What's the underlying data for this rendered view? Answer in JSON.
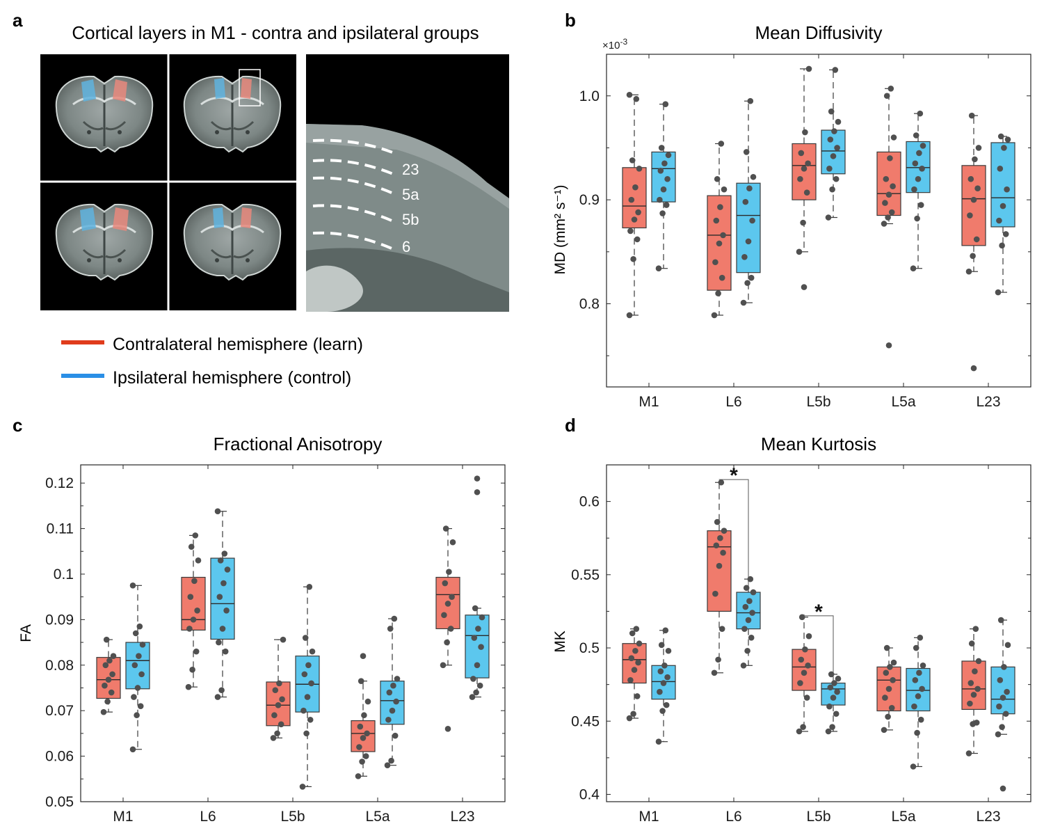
{
  "panel_a": {
    "letter": "a",
    "title": "Cortical layers in M1 - contra and ipsilateral groups",
    "layer_labels": [
      "23",
      "5a",
      "5b",
      "6"
    ],
    "legend": [
      {
        "label": "Contralateral hemisphere (learn)",
        "color": "#e03c1c"
      },
      {
        "label": "Ipsilateral hemisphere (control)",
        "color": "#2a8fe6"
      }
    ]
  },
  "colors": {
    "contra_fill": "#f07b6c",
    "ipsi_fill": "#5cc7ee",
    "box_edge": "#3a3a3a",
    "points": "#505050",
    "roi_contra": "#e8887c",
    "roi_ipsi": "#5fb3de"
  },
  "chart_data": [
    {
      "id": "b",
      "type": "box",
      "letter": "b",
      "title": "Mean Diffusivity",
      "ylabel": "MD (mm² s⁻¹)",
      "exponent_label": "×10",
      "exponent_power": "-3",
      "categories": [
        "M1",
        "L6",
        "L5b",
        "L5a",
        "L23"
      ],
      "ylim": [
        0.72,
        1.04
      ],
      "yticks": [
        0.8,
        0.9,
        1.0
      ],
      "ytick_labels": [
        "0.8",
        "0.9",
        "1.0"
      ],
      "minor_ticks": [
        0.75,
        0.85,
        0.95
      ],
      "series": [
        {
          "name": "Contralateral hemisphere (learn)",
          "boxes": [
            {
              "q1": 0.873,
              "median": 0.894,
              "q3": 0.931,
              "lo": 0.789,
              "hi": 1.001,
              "points": [
                0.789,
                0.843,
                0.862,
                0.87,
                0.881,
                0.888,
                0.9,
                0.912,
                0.93,
                0.938,
                0.997,
                1.001
              ],
              "outliers": []
            },
            {
              "q1": 0.813,
              "median": 0.866,
              "q3": 0.904,
              "lo": 0.789,
              "hi": 0.954,
              "points": [
                0.789,
                0.81,
                0.825,
                0.84,
                0.858,
                0.866,
                0.88,
                0.893,
                0.91,
                0.92,
                0.954
              ],
              "outliers": []
            },
            {
              "q1": 0.9,
              "median": 0.933,
              "q3": 0.954,
              "lo": 0.85,
              "hi": 1.026,
              "points": [
                0.85,
                0.878,
                0.907,
                0.92,
                0.93,
                0.935,
                0.945,
                0.965,
                1.026
              ],
              "outliers": [
                0.816
              ]
            },
            {
              "q1": 0.885,
              "median": 0.906,
              "q3": 0.946,
              "lo": 0.877,
              "hi": 1.007,
              "points": [
                0.877,
                0.883,
                0.888,
                0.897,
                0.905,
                0.913,
                0.92,
                0.94,
                0.96,
                1.0,
                1.007
              ],
              "outliers": [
                0.76
              ]
            },
            {
              "q1": 0.856,
              "median": 0.901,
              "q3": 0.933,
              "lo": 0.831,
              "hi": 0.981,
              "points": [
                0.831,
                0.846,
                0.862,
                0.885,
                0.9,
                0.911,
                0.92,
                0.939,
                0.95,
                0.981
              ],
              "outliers": [
                0.738
              ]
            }
          ]
        },
        {
          "name": "Ipsilateral hemisphere (control)",
          "boxes": [
            {
              "q1": 0.898,
              "median": 0.93,
              "q3": 0.946,
              "lo": 0.834,
              "hi": 0.992,
              "points": [
                0.834,
                0.887,
                0.895,
                0.9,
                0.91,
                0.92,
                0.928,
                0.935,
                0.943,
                0.95,
                0.992
              ],
              "outliers": []
            },
            {
              "q1": 0.83,
              "median": 0.885,
              "q3": 0.916,
              "lo": 0.801,
              "hi": 0.995,
              "points": [
                0.801,
                0.82,
                0.825,
                0.845,
                0.86,
                0.88,
                0.898,
                0.911,
                0.922,
                0.946,
                0.995
              ],
              "outliers": []
            },
            {
              "q1": 0.925,
              "median": 0.947,
              "q3": 0.967,
              "lo": 0.883,
              "hi": 1.025,
              "points": [
                0.883,
                0.91,
                0.92,
                0.93,
                0.942,
                0.95,
                0.958,
                0.966,
                0.975,
                0.985,
                1.025
              ],
              "outliers": []
            },
            {
              "q1": 0.907,
              "median": 0.931,
              "q3": 0.956,
              "lo": 0.834,
              "hi": 0.983,
              "points": [
                0.834,
                0.882,
                0.895,
                0.91,
                0.92,
                0.93,
                0.935,
                0.945,
                0.952,
                0.962,
                0.983
              ],
              "outliers": []
            },
            {
              "q1": 0.874,
              "median": 0.902,
              "q3": 0.955,
              "lo": 0.811,
              "hi": 0.961,
              "points": [
                0.811,
                0.856,
                0.867,
                0.88,
                0.894,
                0.91,
                0.93,
                0.95,
                0.958,
                0.961
              ],
              "outliers": []
            }
          ]
        }
      ],
      "significance": []
    },
    {
      "id": "c",
      "type": "box",
      "letter": "c",
      "title": "Fractional Anisotropy",
      "ylabel": "FA",
      "categories": [
        "M1",
        "L6",
        "L5b",
        "L5a",
        "L23"
      ],
      "ylim": [
        0.05,
        0.124
      ],
      "yticks": [
        0.05,
        0.06,
        0.07,
        0.08,
        0.09,
        0.1,
        0.11,
        0.12
      ],
      "ytick_labels": [
        "0.05",
        "0.06",
        "0.07",
        "0.08",
        "0.09",
        "0.1",
        "0.11",
        "0.12"
      ],
      "minor_ticks": [
        0.055,
        0.065,
        0.075,
        0.085,
        0.095,
        0.105,
        0.115
      ],
      "series": [
        {
          "name": "Contralateral hemisphere (learn)",
          "boxes": [
            {
              "q1": 0.0727,
              "median": 0.0768,
              "q3": 0.0817,
              "lo": 0.0697,
              "hi": 0.0856,
              "points": [
                0.0697,
                0.072,
                0.074,
                0.0755,
                0.0768,
                0.078,
                0.08,
                0.081,
                0.082,
                0.0856
              ],
              "outliers": []
            },
            {
              "q1": 0.0877,
              "median": 0.09,
              "q3": 0.0993,
              "lo": 0.0752,
              "hi": 0.1085,
              "points": [
                0.0752,
                0.079,
                0.083,
                0.088,
                0.09,
                0.092,
                0.095,
                0.0985,
                0.103,
                0.106,
                0.1085
              ],
              "outliers": []
            },
            {
              "q1": 0.0667,
              "median": 0.0712,
              "q3": 0.0763,
              "lo": 0.064,
              "hi": 0.0856,
              "points": [
                0.064,
                0.065,
                0.067,
                0.069,
                0.0712,
                0.0725,
                0.0745,
                0.076,
                0.0856
              ],
              "outliers": []
            },
            {
              "q1": 0.061,
              "median": 0.065,
              "q3": 0.0678,
              "lo": 0.0556,
              "hi": 0.0765,
              "points": [
                0.0556,
                0.0588,
                0.06,
                0.062,
                0.064,
                0.065,
                0.0665,
                0.069,
                0.072,
                0.0765
              ],
              "outliers": [
                0.082
              ]
            },
            {
              "q1": 0.088,
              "median": 0.0955,
              "q3": 0.0993,
              "lo": 0.08,
              "hi": 0.11,
              "points": [
                0.08,
                0.085,
                0.088,
                0.091,
                0.0935,
                0.095,
                0.098,
                0.1005,
                0.107,
                0.11
              ],
              "outliers": [
                0.066
              ]
            }
          ]
        },
        {
          "name": "Ipsilateral hemisphere (control)",
          "boxes": [
            {
              "q1": 0.0748,
              "median": 0.081,
              "q3": 0.085,
              "lo": 0.0615,
              "hi": 0.0975,
              "points": [
                0.0615,
                0.069,
                0.071,
                0.073,
                0.075,
                0.078,
                0.08,
                0.082,
                0.0845,
                0.087,
                0.0885,
                0.0975
              ],
              "outliers": []
            },
            {
              "q1": 0.0857,
              "median": 0.0935,
              "q3": 0.1035,
              "lo": 0.073,
              "hi": 0.1138,
              "points": [
                0.073,
                0.0745,
                0.083,
                0.085,
                0.088,
                0.092,
                0.095,
                0.098,
                0.101,
                0.103,
                0.1045,
                0.1138
              ],
              "outliers": []
            },
            {
              "q1": 0.0697,
              "median": 0.0758,
              "q3": 0.082,
              "lo": 0.0533,
              "hi": 0.0972,
              "points": [
                0.0533,
                0.065,
                0.068,
                0.07,
                0.073,
                0.076,
                0.078,
                0.08,
                0.083,
                0.086,
                0.0972
              ],
              "outliers": []
            },
            {
              "q1": 0.067,
              "median": 0.0722,
              "q3": 0.0765,
              "lo": 0.058,
              "hi": 0.0902,
              "points": [
                0.058,
                0.059,
                0.0645,
                0.068,
                0.07,
                0.072,
                0.074,
                0.0755,
                0.077,
                0.088,
                0.0902
              ],
              "outliers": []
            },
            {
              "q1": 0.0772,
              "median": 0.0865,
              "q3": 0.091,
              "lo": 0.073,
              "hi": 0.0925,
              "points": [
                0.073,
                0.074,
                0.0755,
                0.077,
                0.08,
                0.084,
                0.086,
                0.088,
                0.0905,
                0.0925
              ],
              "outliers": [
                0.118,
                0.121
              ]
            }
          ]
        }
      ],
      "significance": []
    },
    {
      "id": "d",
      "type": "box",
      "letter": "d",
      "title": "Mean Kurtosis",
      "ylabel": "MK",
      "categories": [
        "M1",
        "L6",
        "L5b",
        "L5a",
        "L23"
      ],
      "ylim": [
        0.395,
        0.625
      ],
      "yticks": [
        0.4,
        0.45,
        0.5,
        0.55,
        0.6
      ],
      "ytick_labels": [
        "0.4",
        "0.45",
        "0.5",
        "0.55",
        "0.6"
      ],
      "minor_ticks": [
        0.425,
        0.475,
        0.525,
        0.575
      ],
      "series": [
        {
          "name": "Contralateral hemisphere (learn)",
          "boxes": [
            {
              "q1": 0.476,
              "median": 0.492,
              "q3": 0.503,
              "lo": 0.452,
              "hi": 0.513,
              "points": [
                0.452,
                0.455,
                0.467,
                0.478,
                0.485,
                0.49,
                0.493,
                0.498,
                0.503,
                0.51,
                0.513
              ],
              "outliers": []
            },
            {
              "q1": 0.525,
              "median": 0.569,
              "q3": 0.58,
              "lo": 0.483,
              "hi": 0.613,
              "points": [
                0.483,
                0.492,
                0.513,
                0.537,
                0.556,
                0.565,
                0.57,
                0.575,
                0.58,
                0.586,
                0.613
              ],
              "outliers": []
            },
            {
              "q1": 0.471,
              "median": 0.487,
              "q3": 0.499,
              "lo": 0.443,
              "hi": 0.521,
              "points": [
                0.443,
                0.446,
                0.466,
                0.476,
                0.483,
                0.488,
                0.492,
                0.499,
                0.508,
                0.521
              ],
              "outliers": []
            },
            {
              "q1": 0.457,
              "median": 0.478,
              "q3": 0.487,
              "lo": 0.444,
              "hi": 0.5,
              "points": [
                0.444,
                0.453,
                0.459,
                0.466,
                0.472,
                0.478,
                0.483,
                0.487,
                0.49,
                0.5
              ],
              "outliers": []
            },
            {
              "q1": 0.458,
              "median": 0.472,
              "q3": 0.491,
              "lo": 0.428,
              "hi": 0.513,
              "points": [
                0.428,
                0.448,
                0.449,
                0.462,
                0.468,
                0.472,
                0.476,
                0.484,
                0.491,
                0.503,
                0.513
              ],
              "outliers": []
            }
          ]
        },
        {
          "name": "Ipsilateral hemisphere (control)",
          "boxes": [
            {
              "q1": 0.465,
              "median": 0.477,
              "q3": 0.488,
              "lo": 0.436,
              "hi": 0.512,
              "points": [
                0.436,
                0.457,
                0.461,
                0.47,
                0.476,
                0.48,
                0.484,
                0.488,
                0.498,
                0.502,
                0.512
              ],
              "outliers": []
            },
            {
              "q1": 0.513,
              "median": 0.524,
              "q3": 0.538,
              "lo": 0.488,
              "hi": 0.547,
              "points": [
                0.488,
                0.498,
                0.507,
                0.513,
                0.519,
                0.524,
                0.528,
                0.532,
                0.538,
                0.541,
                0.547
              ],
              "outliers": []
            },
            {
              "q1": 0.461,
              "median": 0.472,
              "q3": 0.476,
              "lo": 0.443,
              "hi": 0.482,
              "points": [
                0.443,
                0.446,
                0.455,
                0.46,
                0.466,
                0.47,
                0.473,
                0.476,
                0.479,
                0.482
              ],
              "outliers": []
            },
            {
              "q1": 0.457,
              "median": 0.471,
              "q3": 0.486,
              "lo": 0.419,
              "hi": 0.507,
              "points": [
                0.419,
                0.442,
                0.451,
                0.46,
                0.467,
                0.472,
                0.478,
                0.483,
                0.488,
                0.5,
                0.507
              ],
              "outliers": []
            },
            {
              "q1": 0.455,
              "median": 0.465,
              "q3": 0.487,
              "lo": 0.441,
              "hi": 0.519,
              "points": [
                0.441,
                0.446,
                0.455,
                0.46,
                0.466,
                0.47,
                0.478,
                0.487,
                0.502,
                0.519
              ],
              "outliers": [
                0.404
              ]
            }
          ]
        }
      ],
      "significance": [
        {
          "category": "L6",
          "label": "*",
          "level": 0.614
        },
        {
          "category": "L5b",
          "label": "*",
          "level": 0.521
        }
      ]
    }
  ]
}
